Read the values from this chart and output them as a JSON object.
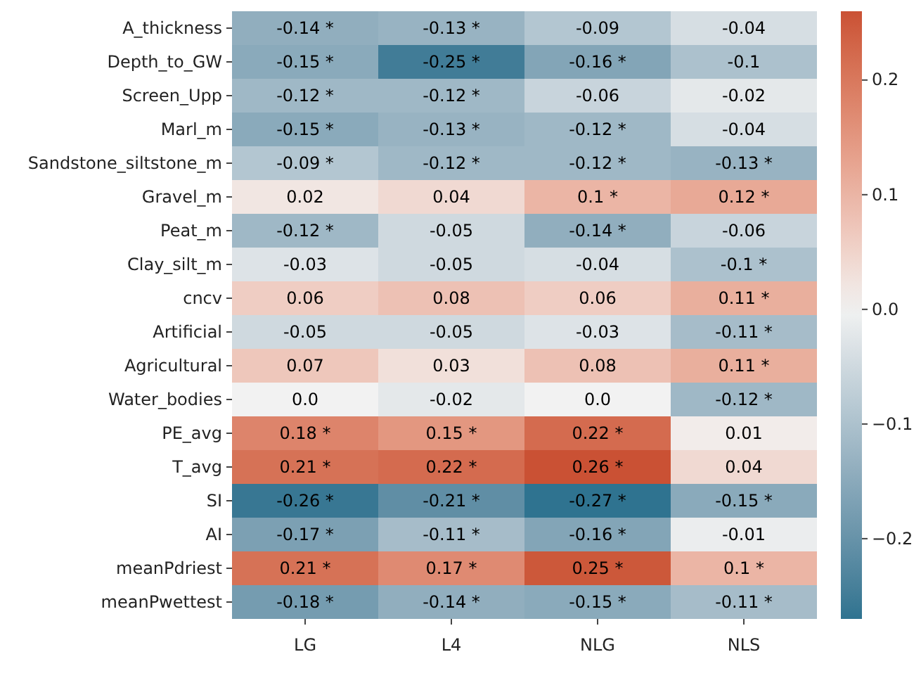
{
  "chart_data": {
    "type": "heatmap",
    "categories": [
      "LG",
      "L4",
      "NLG",
      "NLS"
    ],
    "y_categories": [
      "A_thickness",
      "Depth_to_GW",
      "Screen_Upp",
      "Marl_m",
      "Sandstone_siltstone_m",
      "Gravel_m",
      "Peat_m",
      "Clay_silt_m",
      "cncv",
      "Artificial",
      "Agricultural",
      "Water_bodies",
      "PE_avg",
      "T_avg",
      "SI",
      "AI",
      "meanPdriest",
      "meanPwettest"
    ],
    "cells": [
      [
        -0.14,
        -0.13,
        -0.09,
        -0.04
      ],
      [
        -0.15,
        -0.25,
        -0.16,
        -0.1
      ],
      [
        -0.12,
        -0.12,
        -0.06,
        -0.02
      ],
      [
        -0.15,
        -0.13,
        -0.12,
        -0.04
      ],
      [
        -0.09,
        -0.12,
        -0.12,
        -0.13
      ],
      [
        0.02,
        0.04,
        0.1,
        0.12
      ],
      [
        -0.12,
        -0.05,
        -0.14,
        -0.06
      ],
      [
        -0.03,
        -0.05,
        -0.04,
        -0.1
      ],
      [
        0.06,
        0.08,
        0.06,
        0.11
      ],
      [
        -0.05,
        -0.05,
        -0.03,
        -0.11
      ],
      [
        0.07,
        0.03,
        0.08,
        0.11
      ],
      [
        0.0,
        -0.02,
        0.0,
        -0.12
      ],
      [
        0.18,
        0.15,
        0.22,
        0.01
      ],
      [
        0.21,
        0.22,
        0.26,
        0.04
      ],
      [
        -0.26,
        -0.21,
        -0.27,
        -0.15
      ],
      [
        -0.17,
        -0.11,
        -0.16,
        -0.01
      ],
      [
        0.21,
        0.17,
        0.25,
        0.1
      ],
      [
        -0.18,
        -0.14,
        -0.15,
        -0.11
      ]
    ],
    "cell_labels": [
      [
        "-0.14 *",
        "-0.13 *",
        "-0.09",
        "-0.04"
      ],
      [
        "-0.15 *",
        "-0.25 *",
        "-0.16 *",
        "-0.1"
      ],
      [
        "-0.12 *",
        "-0.12 *",
        "-0.06",
        "-0.02"
      ],
      [
        "-0.15 *",
        "-0.13 *",
        "-0.12 *",
        "-0.04"
      ],
      [
        "-0.09 *",
        "-0.12 *",
        "-0.12 *",
        "-0.13 *"
      ],
      [
        "0.02",
        "0.04",
        "0.1 *",
        "0.12 *"
      ],
      [
        "-0.12 *",
        "-0.05",
        "-0.14 *",
        "-0.06"
      ],
      [
        "-0.03",
        "-0.05",
        "-0.04",
        "-0.1 *"
      ],
      [
        "0.06",
        "0.08",
        "0.06",
        "0.11 *"
      ],
      [
        "-0.05",
        "-0.05",
        "-0.03",
        "-0.11 *"
      ],
      [
        "0.07",
        "0.03",
        "0.08",
        "0.11 *"
      ],
      [
        "0.0",
        "-0.02",
        "0.0",
        "-0.12 *"
      ],
      [
        "0.18 *",
        "0.15 *",
        "0.22 *",
        "0.01"
      ],
      [
        "0.21 *",
        "0.22 *",
        "0.26 *",
        "0.04"
      ],
      [
        "-0.26 *",
        "-0.21 *",
        "-0.27 *",
        "-0.15 *"
      ],
      [
        "-0.17 *",
        "-0.11 *",
        "-0.16 *",
        "-0.01"
      ],
      [
        "0.21 *",
        "0.17 *",
        "0.25 *",
        "0.1 *"
      ],
      [
        "-0.18 *",
        "-0.14 *",
        "-0.15 *",
        "-0.11 *"
      ]
    ],
    "clim": [
      -0.27,
      0.26
    ],
    "cticks": [
      {
        "value": -0.2,
        "label": "−0.2"
      },
      {
        "value": -0.1,
        "label": "−0.1"
      },
      {
        "value": 0,
        "label": "0.0"
      },
      {
        "value": 0.1,
        "label": "0.1"
      },
      {
        "value": 0.2,
        "label": "0.2"
      }
    ]
  }
}
